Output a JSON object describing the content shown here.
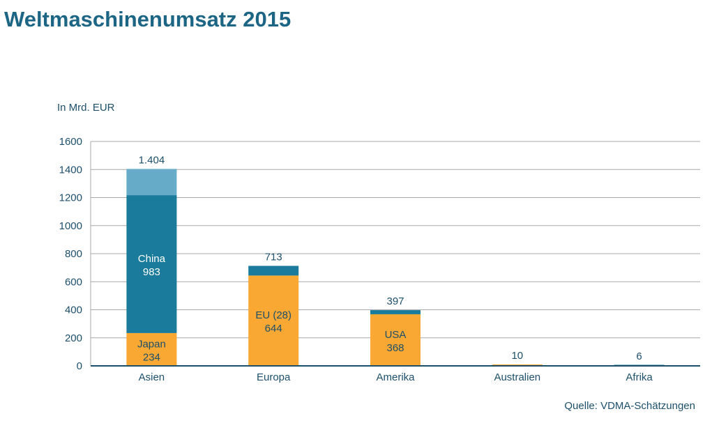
{
  "title": "Weltmaschinenumsatz 2015",
  "unit_label": "In Mrd. EUR",
  "source": "Quelle: VDMA-Schätzungen",
  "colors": {
    "title": "#1d6585",
    "axis": "#1d4f6b",
    "grid": "#a8a8a8",
    "orange": "#f9a933",
    "blue_dark": "#1a7b9c",
    "blue_light": "#66acc9"
  },
  "chart_data": {
    "type": "bar",
    "stacked": true,
    "ylim": [
      0,
      1600
    ],
    "yticks": [
      0,
      200,
      400,
      600,
      800,
      1000,
      1200,
      1400,
      1600
    ],
    "grid": true,
    "categories": [
      "Asien",
      "Europa",
      "Amerika",
      "Australien",
      "Afrika"
    ],
    "totals": [
      1404,
      713,
      397,
      10,
      6
    ],
    "total_labels": [
      "1.404",
      "713",
      "397",
      "10",
      "6"
    ],
    "segments": [
      [
        {
          "label": "Japan",
          "value": 234,
          "color": "#f9a933",
          "text_color": "#1d4f6b"
        },
        {
          "label": "China",
          "value": 983,
          "color": "#1a7b9c",
          "text_color": "#ffffff"
        },
        {
          "label": "",
          "value": 187,
          "color": "#66acc9",
          "text_color": "#ffffff"
        }
      ],
      [
        {
          "label": "EU (28)",
          "value": 644,
          "color": "#f9a933",
          "text_color": "#1d4f6b"
        },
        {
          "label": "",
          "value": 69,
          "color": "#1a7b9c",
          "text_color": "#ffffff"
        }
      ],
      [
        {
          "label": "USA",
          "value": 368,
          "color": "#f9a933",
          "text_color": "#1d4f6b"
        },
        {
          "label": "",
          "value": 29,
          "color": "#1a7b9c",
          "text_color": "#ffffff"
        }
      ],
      [
        {
          "label": "",
          "value": 10,
          "color": "#f9a933",
          "text_color": "#1d4f6b"
        }
      ],
      [
        {
          "label": "",
          "value": 6,
          "color": "#1a7b9c",
          "text_color": "#ffffff"
        }
      ]
    ]
  }
}
